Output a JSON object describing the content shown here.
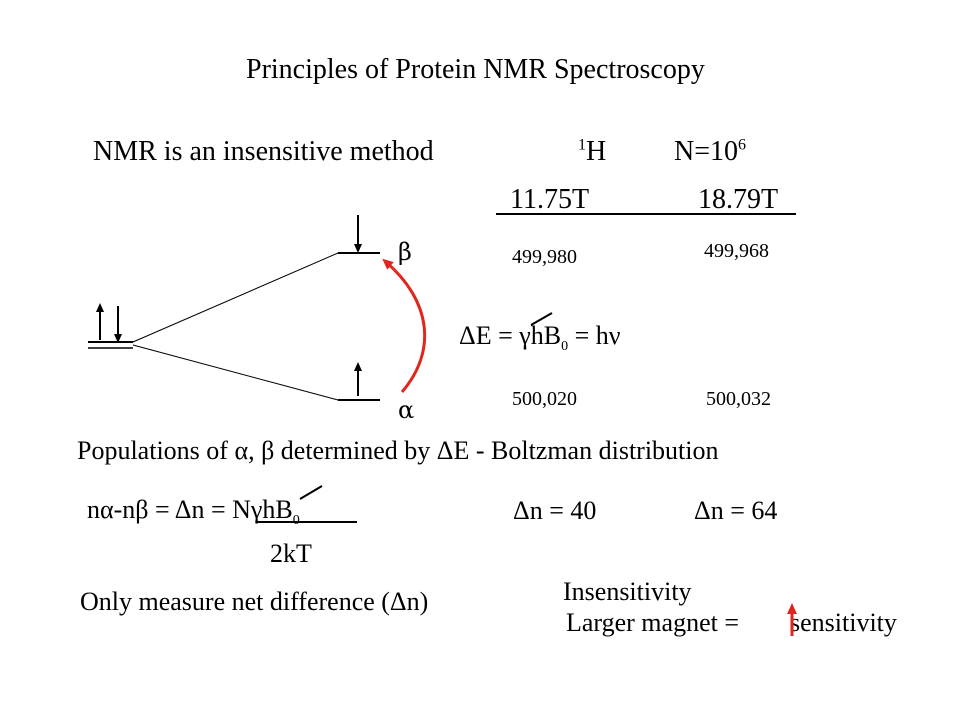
{
  "title": "Principles of Protein NMR Spectroscopy",
  "subtitle": "NMR is an insensitive method",
  "nucleus": {
    "mass_number": "1",
    "symbol": "H",
    "n_label": "N=10",
    "n_exponent": "6"
  },
  "fields": [
    "11.75T",
    "18.79T"
  ],
  "beta_populations": [
    "499,980",
    "499,968"
  ],
  "alpha_populations": [
    "500,020",
    "500,032"
  ],
  "levels": {
    "beta": "β",
    "alpha": "α"
  },
  "energy_equation": {
    "lhs": "ΔE =",
    "gamma_h": "γh",
    "b": "B",
    "b_sub": "0",
    "rhs": "= hν"
  },
  "populations_sentence": "Populations of α, β determined by ΔE - Boltzman distribution",
  "population_equation": {
    "lhs": "nα-nβ  = Δn = Nγh",
    "b": "B",
    "b_sub": "0",
    "denominator": "2kT"
  },
  "delta_n": [
    "Δn = 40",
    "Δn = 64"
  ],
  "measure_note": "Only measure net difference (Δn)",
  "insensitivity_label": "Insensitivity",
  "magnet_note_prefix": "Larger magnet =",
  "magnet_note_suffix": "sensitivity",
  "colors": {
    "text": "#000000",
    "transition_arrow": "#e0261d",
    "increase_arrow": "#e0261d"
  }
}
